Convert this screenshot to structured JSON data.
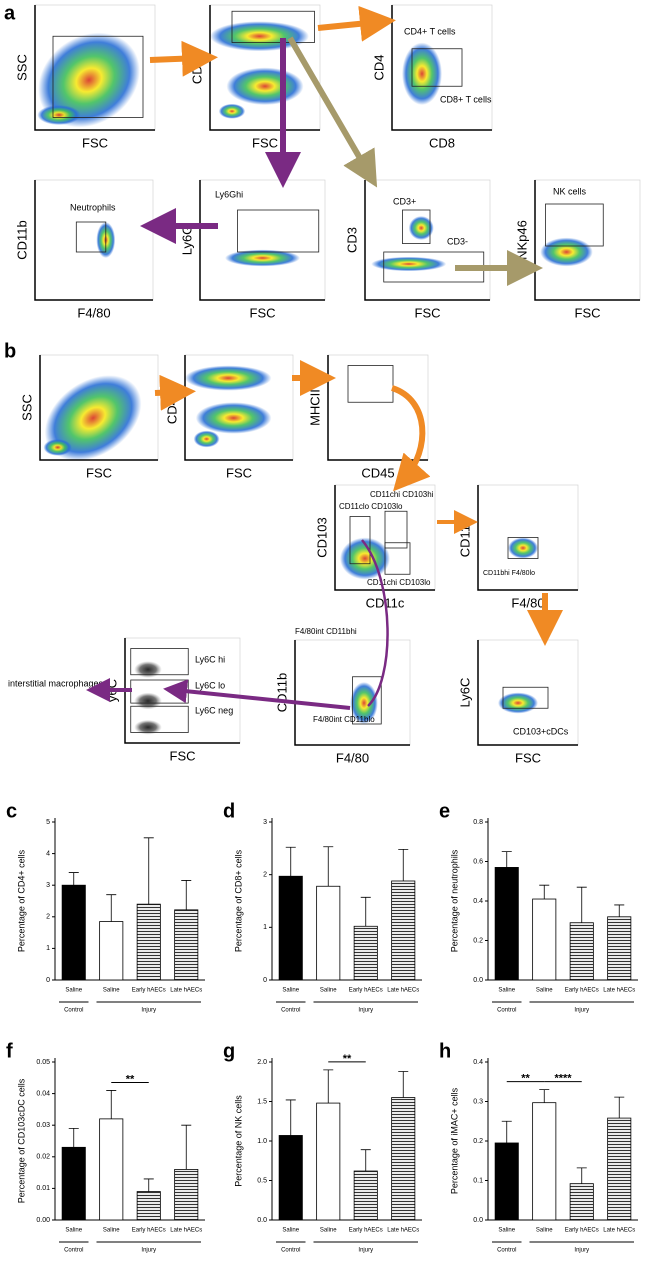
{
  "gating": {
    "panels": [
      "a",
      "b"
    ],
    "plots": [
      {
        "y": "SSC",
        "x": "FSC"
      },
      {
        "y": "CD45",
        "x": "FSC"
      },
      {
        "y": "CD4",
        "x": "CD8",
        "notes": [
          "CD4+ T cells",
          "CD8+ T cells"
        ]
      },
      {
        "y": "CD11b",
        "x": "F4/80",
        "notes": [
          "Neutrophils"
        ]
      },
      {
        "y": "Ly6G",
        "x": "FSC",
        "notes": [
          "Ly6Ghi"
        ]
      },
      {
        "y": "CD3",
        "x": "FSC",
        "notes": [
          "CD3+",
          "CD3-"
        ]
      },
      {
        "y": "NKp46",
        "x": "FSC",
        "notes": [
          "NK cells"
        ]
      },
      {
        "y": "SSC",
        "x": "FSC"
      },
      {
        "y": "CD45",
        "x": "FSC"
      },
      {
        "y": "MHCII",
        "x": "CD45"
      },
      {
        "y": "CD103",
        "x": "CD11c",
        "notes": [
          "CD11chi CD103hi",
          "CD11clo CD103lo",
          "CD11chi CD103lo"
        ]
      },
      {
        "y": "CD11b",
        "x": "F4/80",
        "notes": [
          "CD11bhi F4/80lo"
        ]
      },
      {
        "y": "y6C",
        "x": "FSC",
        "notes": [
          "Ly6C hi",
          "Ly6C lo",
          "Ly6C neg"
        ]
      },
      {
        "y": "CD11b",
        "x": "F4/80",
        "notes": [
          "F4/80int CD11bhi",
          "F4/80int CD11blo"
        ]
      },
      {
        "y": "Ly6C",
        "x": "FSC",
        "notes": [
          "CD103+cDCs"
        ]
      }
    ],
    "callout": "interstitial macrophages"
  },
  "chart_data": [
    {
      "type": "bar",
      "panel": "c",
      "y_label": "Percentage of CD4+ cells",
      "categories": [
        "Saline",
        "Saline",
        "Early hAECs",
        "Late hAECs"
      ],
      "values": [
        3.0,
        1.85,
        2.4,
        2.22
      ],
      "errors": [
        0.4,
        0.85,
        2.1,
        0.93
      ],
      "bar_styles": [
        "#000000",
        "#ffffff",
        "hatch",
        "hatch"
      ],
      "groups": [
        {
          "label": "Control",
          "span": [
            0,
            0
          ]
        },
        {
          "label": "Injury",
          "span": [
            1,
            3
          ]
        }
      ],
      "ylim": [
        0,
        5
      ],
      "yticks": [
        0,
        1,
        2,
        3,
        4,
        5
      ]
    },
    {
      "type": "bar",
      "panel": "d",
      "y_label": "Percentage of CD8+ cells",
      "categories": [
        "Saline",
        "Saline",
        "Early hAECs",
        "Late hAECs"
      ],
      "values": [
        1.97,
        1.78,
        1.02,
        1.88
      ],
      "errors": [
        0.55,
        0.75,
        0.55,
        0.6
      ],
      "bar_styles": [
        "#000000",
        "#ffffff",
        "hatch",
        "hatch"
      ],
      "groups": [
        {
          "label": "Control",
          "span": [
            0,
            0
          ]
        },
        {
          "label": "Injury",
          "span": [
            1,
            3
          ]
        }
      ],
      "ylim": [
        0,
        3
      ],
      "yticks": [
        0,
        1,
        2,
        3
      ]
    },
    {
      "type": "bar",
      "panel": "e",
      "y_label": "Percentage of neutrophils",
      "categories": [
        "Saline",
        "Saline",
        "Early hAECs",
        "Late hAECs"
      ],
      "values": [
        0.57,
        0.41,
        0.29,
        0.32
      ],
      "errors": [
        0.08,
        0.07,
        0.18,
        0.06
      ],
      "bar_styles": [
        "#000000",
        "#ffffff",
        "hatch",
        "hatch"
      ],
      "groups": [
        {
          "label": "Control",
          "span": [
            0,
            0
          ]
        },
        {
          "label": "Injury",
          "span": [
            1,
            3
          ]
        }
      ],
      "ylim": [
        0,
        0.8
      ],
      "yticks": [
        {
          "value": 0,
          "label": "0.0"
        },
        0.2,
        0.4,
        0.6,
        0.8
      ]
    },
    {
      "type": "bar",
      "panel": "f",
      "y_label": "Percentage of CD103cDC cells",
      "categories": [
        "Saline",
        "Saline",
        "Early hAECs",
        "Late hAECs"
      ],
      "values": [
        0.023,
        0.032,
        0.009,
        0.016
      ],
      "errors": [
        0.006,
        0.009,
        0.004,
        0.014
      ],
      "bar_styles": [
        "#000000",
        "#ffffff",
        "hatch",
        "hatch"
      ],
      "groups": [
        {
          "label": "Control",
          "span": [
            0,
            0
          ]
        },
        {
          "label": "Injury",
          "span": [
            1,
            3
          ]
        }
      ],
      "significance": [
        {
          "between": [
            1,
            2
          ],
          "label": "**"
        }
      ],
      "ylim": [
        0,
        0.05
      ],
      "yticks": [
        {
          "value": 0,
          "label": "0.00"
        },
        {
          "value": 0.01,
          "label": "0.01"
        },
        {
          "value": 0.02,
          "label": "0.02"
        },
        {
          "value": 0.03,
          "label": "0.03"
        },
        {
          "value": 0.04,
          "label": "0.04"
        },
        {
          "value": 0.05,
          "label": "0.05"
        }
      ]
    },
    {
      "type": "bar",
      "panel": "g",
      "y_label": "Percentage of NK cells",
      "categories": [
        "Saline",
        "Saline",
        "Early hAECs",
        "Late hAECs"
      ],
      "values": [
        1.07,
        1.48,
        0.62,
        1.55
      ],
      "errors": [
        0.45,
        0.42,
        0.27,
        0.33
      ],
      "bar_styles": [
        "#000000",
        "#ffffff",
        "hatch",
        "hatch"
      ],
      "groups": [
        {
          "label": "Control",
          "span": [
            0,
            0
          ]
        },
        {
          "label": "Injury",
          "span": [
            1,
            3
          ]
        }
      ],
      "significance": [
        {
          "between": [
            1,
            2
          ],
          "label": "**"
        }
      ],
      "ylim": [
        0,
        2
      ],
      "yticks": [
        {
          "value": 0,
          "label": "0.0"
        },
        {
          "value": 0.5,
          "label": "0.5"
        },
        {
          "value": 1,
          "label": "1.0"
        },
        {
          "value": 1.5,
          "label": "1.5"
        },
        {
          "value": 2,
          "label": "2.0"
        }
      ]
    },
    {
      "type": "bar",
      "panel": "h",
      "y_label": "Percentage of iMAC+ cells",
      "categories": [
        "Saline",
        "Saline",
        "Early hAECs",
        "Late hAECs"
      ],
      "values": [
        0.195,
        0.297,
        0.092,
        0.258
      ],
      "errors": [
        0.055,
        0.033,
        0.04,
        0.053
      ],
      "bar_styles": [
        "#000000",
        "#ffffff",
        "hatch",
        "hatch"
      ],
      "groups": [
        {
          "label": "Control",
          "span": [
            0,
            0
          ]
        },
        {
          "label": "Injury",
          "span": [
            1,
            3
          ]
        }
      ],
      "significance": [
        {
          "between": [
            0,
            1
          ],
          "label": "**"
        },
        {
          "between": [
            1,
            2
          ],
          "label": "****"
        }
      ],
      "ylim": [
        0,
        0.4
      ],
      "yticks": [
        {
          "value": 0,
          "label": "0.0"
        },
        0.1,
        0.2,
        0.3,
        0.4
      ]
    }
  ]
}
